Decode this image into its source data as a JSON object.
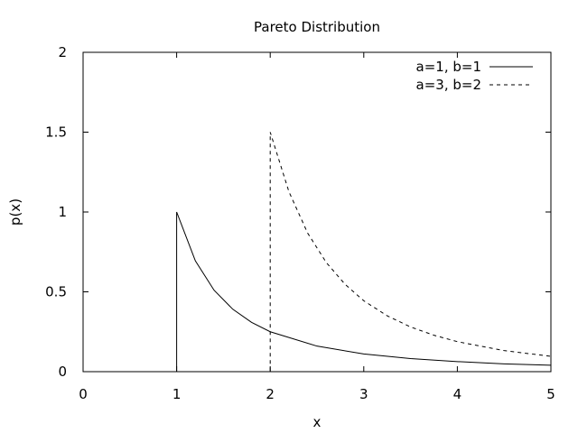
{
  "chart_data": {
    "type": "line",
    "title": "Pareto Distribution",
    "xlabel": "x",
    "ylabel": "p(x)",
    "xlim": [
      0,
      5
    ],
    "ylim": [
      0,
      2
    ],
    "x_ticks": [
      0,
      1,
      2,
      3,
      4,
      5
    ],
    "y_ticks": [
      0,
      0.5,
      1,
      1.5,
      2
    ],
    "x_tick_labels": [
      "0",
      "1",
      "2",
      "3",
      "4",
      "5"
    ],
    "y_tick_labels": [
      "0",
      "0.5",
      "1",
      "1.5",
      "2"
    ],
    "grid": false,
    "legend_position": "top-right",
    "series": [
      {
        "name": "a=1, b=1",
        "style": "solid",
        "color": "#000000",
        "x": [
          0,
          1,
          1,
          1.2,
          1.4,
          1.6,
          1.8,
          2,
          2.5,
          3,
          3.5,
          4,
          4.5,
          5
        ],
        "y": [
          0,
          0,
          1,
          0.694,
          0.51,
          0.391,
          0.309,
          0.25,
          0.16,
          0.111,
          0.082,
          0.063,
          0.049,
          0.04
        ]
      },
      {
        "name": "a=3, b=2",
        "style": "dashed",
        "color": "#000000",
        "x": [
          0,
          2,
          2,
          2.2,
          2.4,
          2.6,
          2.8,
          3,
          3.25,
          3.5,
          3.75,
          4,
          4.5,
          5
        ],
        "y": [
          0,
          0,
          1.5,
          1.127,
          0.868,
          0.683,
          0.547,
          0.444,
          0.35,
          0.28,
          0.228,
          0.188,
          0.132,
          0.096
        ]
      }
    ]
  }
}
